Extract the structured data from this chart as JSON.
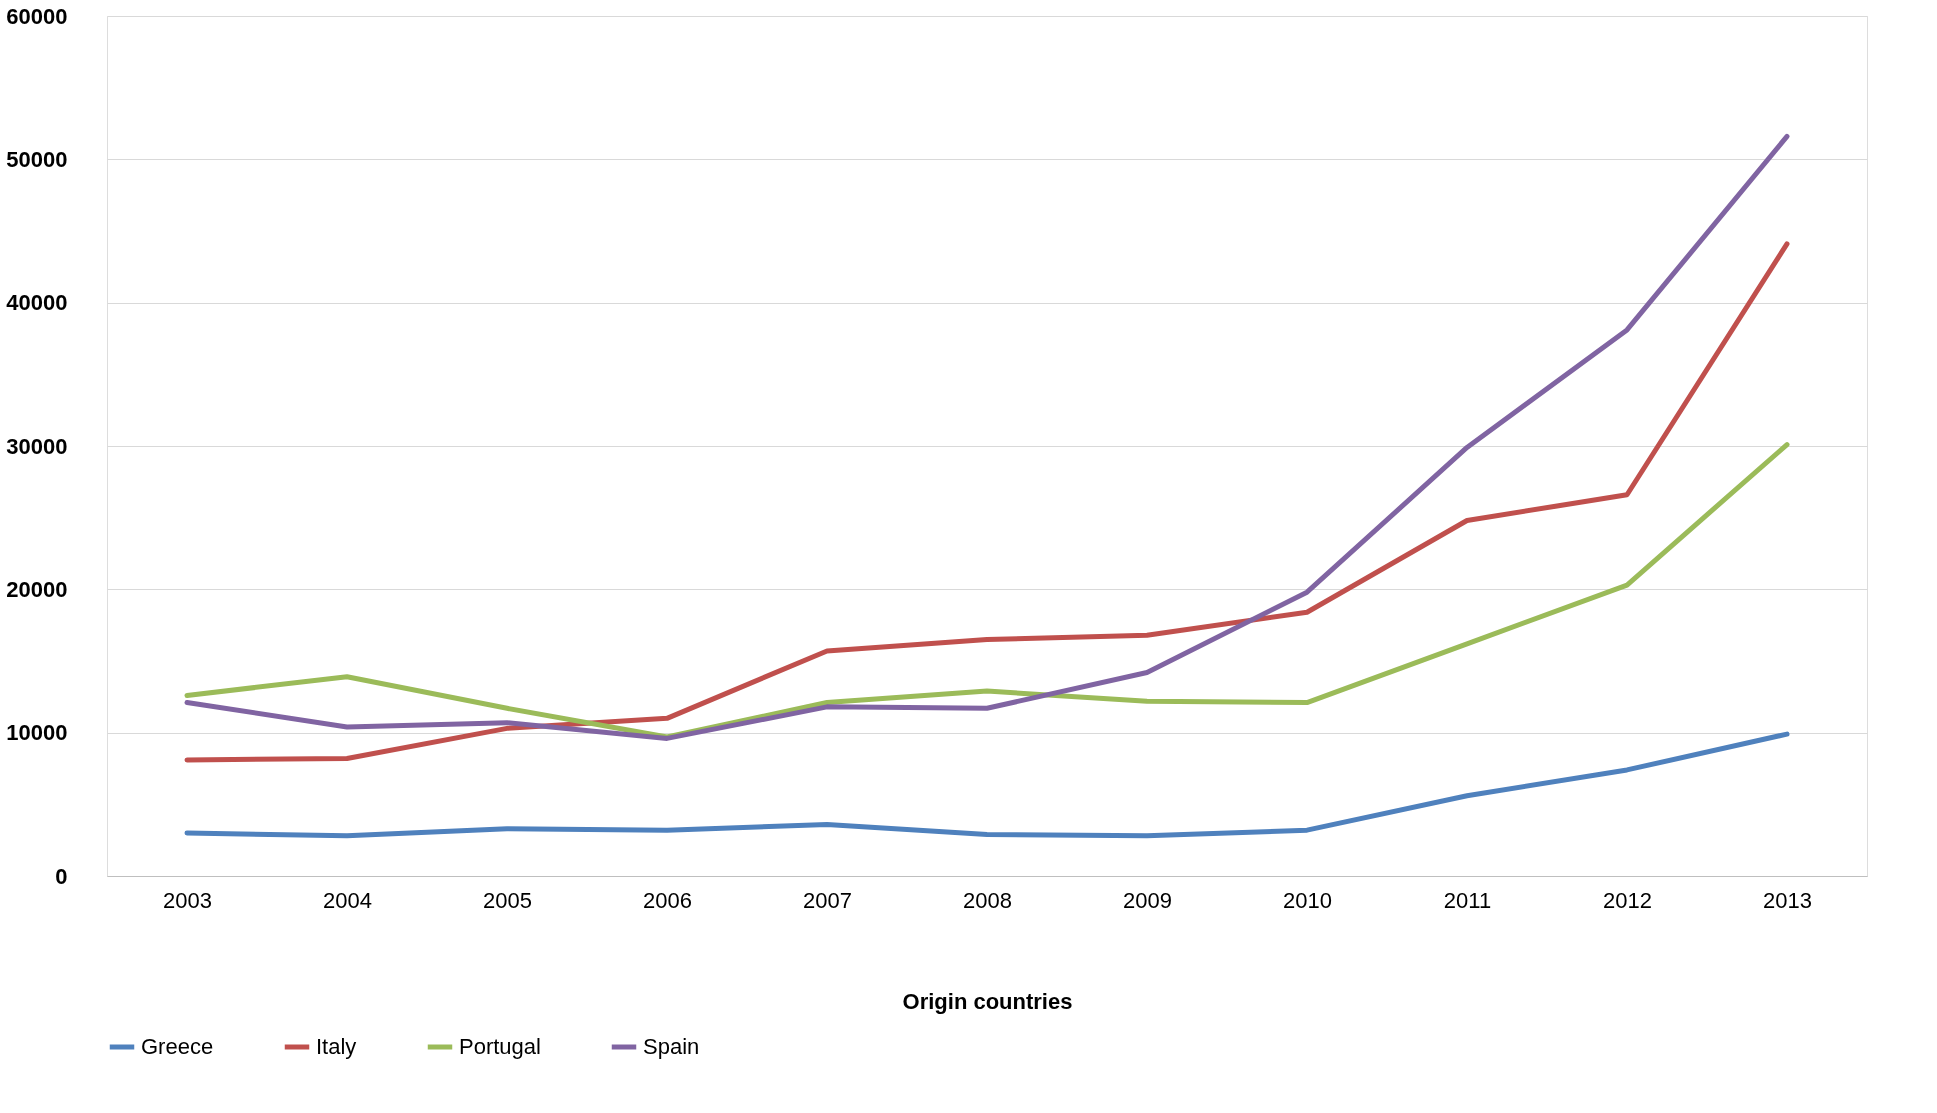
{
  "chart_data": {
    "type": "line",
    "xlabel": "Origin countries",
    "categories": [
      "2003",
      "2004",
      "2005",
      "2006",
      "2007",
      "2008",
      "2009",
      "2010",
      "2011",
      "2012",
      "2013"
    ],
    "series": [
      {
        "name": "Greece",
        "color": "#4f81bd",
        "values": [
          3000,
          2800,
          3300,
          3200,
          3600,
          2900,
          2800,
          3200,
          5600,
          7400,
          9900
        ]
      },
      {
        "name": "Italy",
        "color": "#c0504d",
        "values": [
          8100,
          8200,
          10300,
          11000,
          15700,
          16500,
          16800,
          18400,
          24800,
          26600,
          44100
        ]
      },
      {
        "name": "Portugal",
        "color": "#9bbb59",
        "values": [
          12600,
          13900,
          11700,
          9700,
          12100,
          12900,
          12200,
          12100,
          16200,
          20300,
          30100
        ]
      },
      {
        "name": "Spain",
        "color": "#8064a2",
        "values": [
          12100,
          10400,
          10700,
          9600,
          11800,
          11700,
          14200,
          19800,
          29900,
          38100,
          51600
        ]
      }
    ],
    "ylim": [
      0,
      60000
    ],
    "yticks": [
      0,
      10000,
      20000,
      30000,
      40000,
      50000,
      60000
    ],
    "grid": "y",
    "legend": "bottom",
    "marker": "none",
    "line_style": "solid"
  }
}
